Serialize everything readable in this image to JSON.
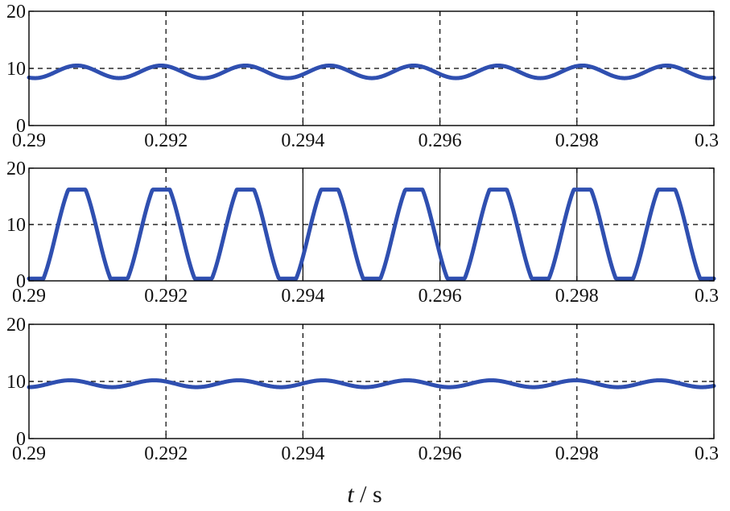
{
  "figure": {
    "xlabel_var": "t",
    "xlabel_unit": " / s"
  },
  "chart_data": [
    {
      "type": "line",
      "xlim": [
        0.29,
        0.3
      ],
      "ylim": [
        0,
        20
      ],
      "x_ticks": [
        0.29,
        0.292,
        0.294,
        0.296,
        0.298,
        0.3
      ],
      "x_tick_labels": [
        "0.29",
        "0.292",
        "0.294",
        "0.296",
        "0.298",
        "0.3"
      ],
      "y_ticks": [
        0,
        10,
        20
      ],
      "y_tick_labels": [
        "0",
        "10",
        "20"
      ],
      "grid": "dashed vertical at 0.292–0.298, dashed horizontal at 10",
      "series": [
        {
          "color": "#2f4fb0",
          "waveform": "sinusoid",
          "mean": 9.4,
          "amplitude": 1.1,
          "period": 0.00123,
          "phase_peak_at": 0.2907,
          "points": [
            [
              0.29,
              8.4
            ],
            [
              0.2907,
              10.5
            ],
            [
              0.2913,
              8.3
            ],
            [
              0.2919,
              10.5
            ],
            [
              0.2925,
              8.3
            ],
            [
              0.2932,
              10.5
            ],
            [
              0.2938,
              8.3
            ],
            [
              0.2944,
              10.5
            ],
            [
              0.295,
              8.3
            ],
            [
              0.2956,
              10.5
            ],
            [
              0.2962,
              8.3
            ],
            [
              0.2969,
              10.5
            ],
            [
              0.2975,
              8.3
            ],
            [
              0.2981,
              10.5
            ],
            [
              0.2987,
              8.3
            ],
            [
              0.2993,
              10.5
            ],
            [
              0.3,
              8.4
            ]
          ]
        }
      ]
    },
    {
      "type": "line",
      "xlim": [
        0.29,
        0.3
      ],
      "ylim": [
        0,
        20
      ],
      "x_ticks": [
        0.29,
        0.292,
        0.294,
        0.296,
        0.298,
        0.3
      ],
      "x_tick_labels": [
        "0.29",
        "0.292",
        "0.294",
        "0.296",
        "0.298",
        "0.3"
      ],
      "y_ticks": [
        0,
        10,
        20
      ],
      "y_tick_labels": [
        "0",
        "10",
        "20"
      ],
      "grid": "dashed at 0.292 and 10, solid vertical at 0.294, 0.296, 0.298",
      "solid_gridlines_x": [
        0.294,
        0.296,
        0.298
      ],
      "series": [
        {
          "color": "#2f4fb0",
          "waveform": "clipped",
          "min": 0.4,
          "max": 16.2,
          "period": 0.00123,
          "phase_peak_at": 0.2907,
          "points": [
            [
              0.29,
              0.5
            ],
            [
              0.2903,
              10.0
            ],
            [
              0.2906,
              16.1
            ],
            [
              0.2909,
              16.1
            ],
            [
              0.2913,
              0.5
            ],
            [
              0.2919,
              16.1
            ],
            [
              0.2925,
              0.5
            ],
            [
              0.2932,
              16.1
            ],
            [
              0.2938,
              0.5
            ],
            [
              0.2944,
              16.1
            ],
            [
              0.295,
              0.5
            ],
            [
              0.2956,
              16.1
            ],
            [
              0.2962,
              0.5
            ],
            [
              0.2969,
              16.1
            ],
            [
              0.2975,
              0.5
            ],
            [
              0.2981,
              16.1
            ],
            [
              0.2987,
              0.5
            ],
            [
              0.2993,
              16.1
            ],
            [
              0.3,
              0.5
            ]
          ]
        }
      ]
    },
    {
      "type": "line",
      "xlim": [
        0.29,
        0.3
      ],
      "ylim": [
        0,
        20
      ],
      "x_ticks": [
        0.29,
        0.292,
        0.294,
        0.296,
        0.298,
        0.3
      ],
      "x_tick_labels": [
        "0.29",
        "0.292",
        "0.294",
        "0.296",
        "0.298",
        "0.3"
      ],
      "y_ticks": [
        0,
        10,
        20
      ],
      "y_tick_labels": [
        "0",
        "10",
        "20"
      ],
      "grid": "dashed vertical at 0.292–0.298, dashed horizontal at 10",
      "series": [
        {
          "color": "#2f4fb0",
          "waveform": "sinusoid",
          "mean": 9.6,
          "amplitude": 0.6,
          "period": 0.00123,
          "phase_peak_at": 0.2906,
          "points": [
            [
              0.29,
              9.1
            ],
            [
              0.2906,
              10.2
            ],
            [
              0.2912,
              9.0
            ],
            [
              0.2918,
              10.2
            ],
            [
              0.2924,
              9.0
            ],
            [
              0.2931,
              10.2
            ],
            [
              0.2937,
              9.0
            ],
            [
              0.2943,
              10.2
            ],
            [
              0.2949,
              9.0
            ],
            [
              0.2955,
              10.2
            ],
            [
              0.2961,
              9.0
            ],
            [
              0.2968,
              10.2
            ],
            [
              0.2974,
              9.0
            ],
            [
              0.298,
              10.2
            ],
            [
              0.2986,
              9.0
            ],
            [
              0.2992,
              10.2
            ],
            [
              0.3,
              9.0
            ]
          ]
        }
      ]
    }
  ]
}
